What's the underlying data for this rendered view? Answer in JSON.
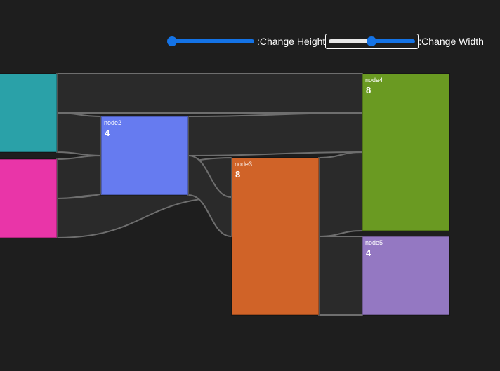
{
  "controls": {
    "height_label": ":Change Height",
    "width_label": ":Change Width",
    "height_value": 0,
    "width_value": 0.5
  },
  "diagram": {
    "nodes": [
      {
        "id": "node0",
        "label": "",
        "value": "",
        "color": "#2aa1a8"
      },
      {
        "id": "node1",
        "label": "",
        "value": "",
        "color": "#e935a8"
      },
      {
        "id": "node2",
        "label": "node2",
        "value": "4",
        "color": "#667bf0"
      },
      {
        "id": "node3",
        "label": "node3",
        "value": "8",
        "color": "#d06328"
      },
      {
        "id": "node4",
        "label": "node4",
        "value": "8",
        "color": "#6a9a22"
      },
      {
        "id": "node5",
        "label": "node5",
        "value": "4",
        "color": "#9478c2"
      }
    ],
    "links": [
      {
        "source": "node0",
        "target": "node4",
        "value": 2
      },
      {
        "source": "node0",
        "target": "node2",
        "value": 2
      },
      {
        "source": "node1",
        "target": "node2",
        "value": 2
      },
      {
        "source": "node1",
        "target": "node3",
        "value": 2
      },
      {
        "source": "node2",
        "target": "node4",
        "value": 2
      },
      {
        "source": "node2",
        "target": "node3",
        "value": 2
      },
      {
        "source": "node3",
        "target": "node4",
        "value": 4
      },
      {
        "source": "node3",
        "target": "node5",
        "value": 4
      }
    ],
    "link_fill": "#2a2a2a",
    "link_stroke": "#6e6e6e"
  }
}
